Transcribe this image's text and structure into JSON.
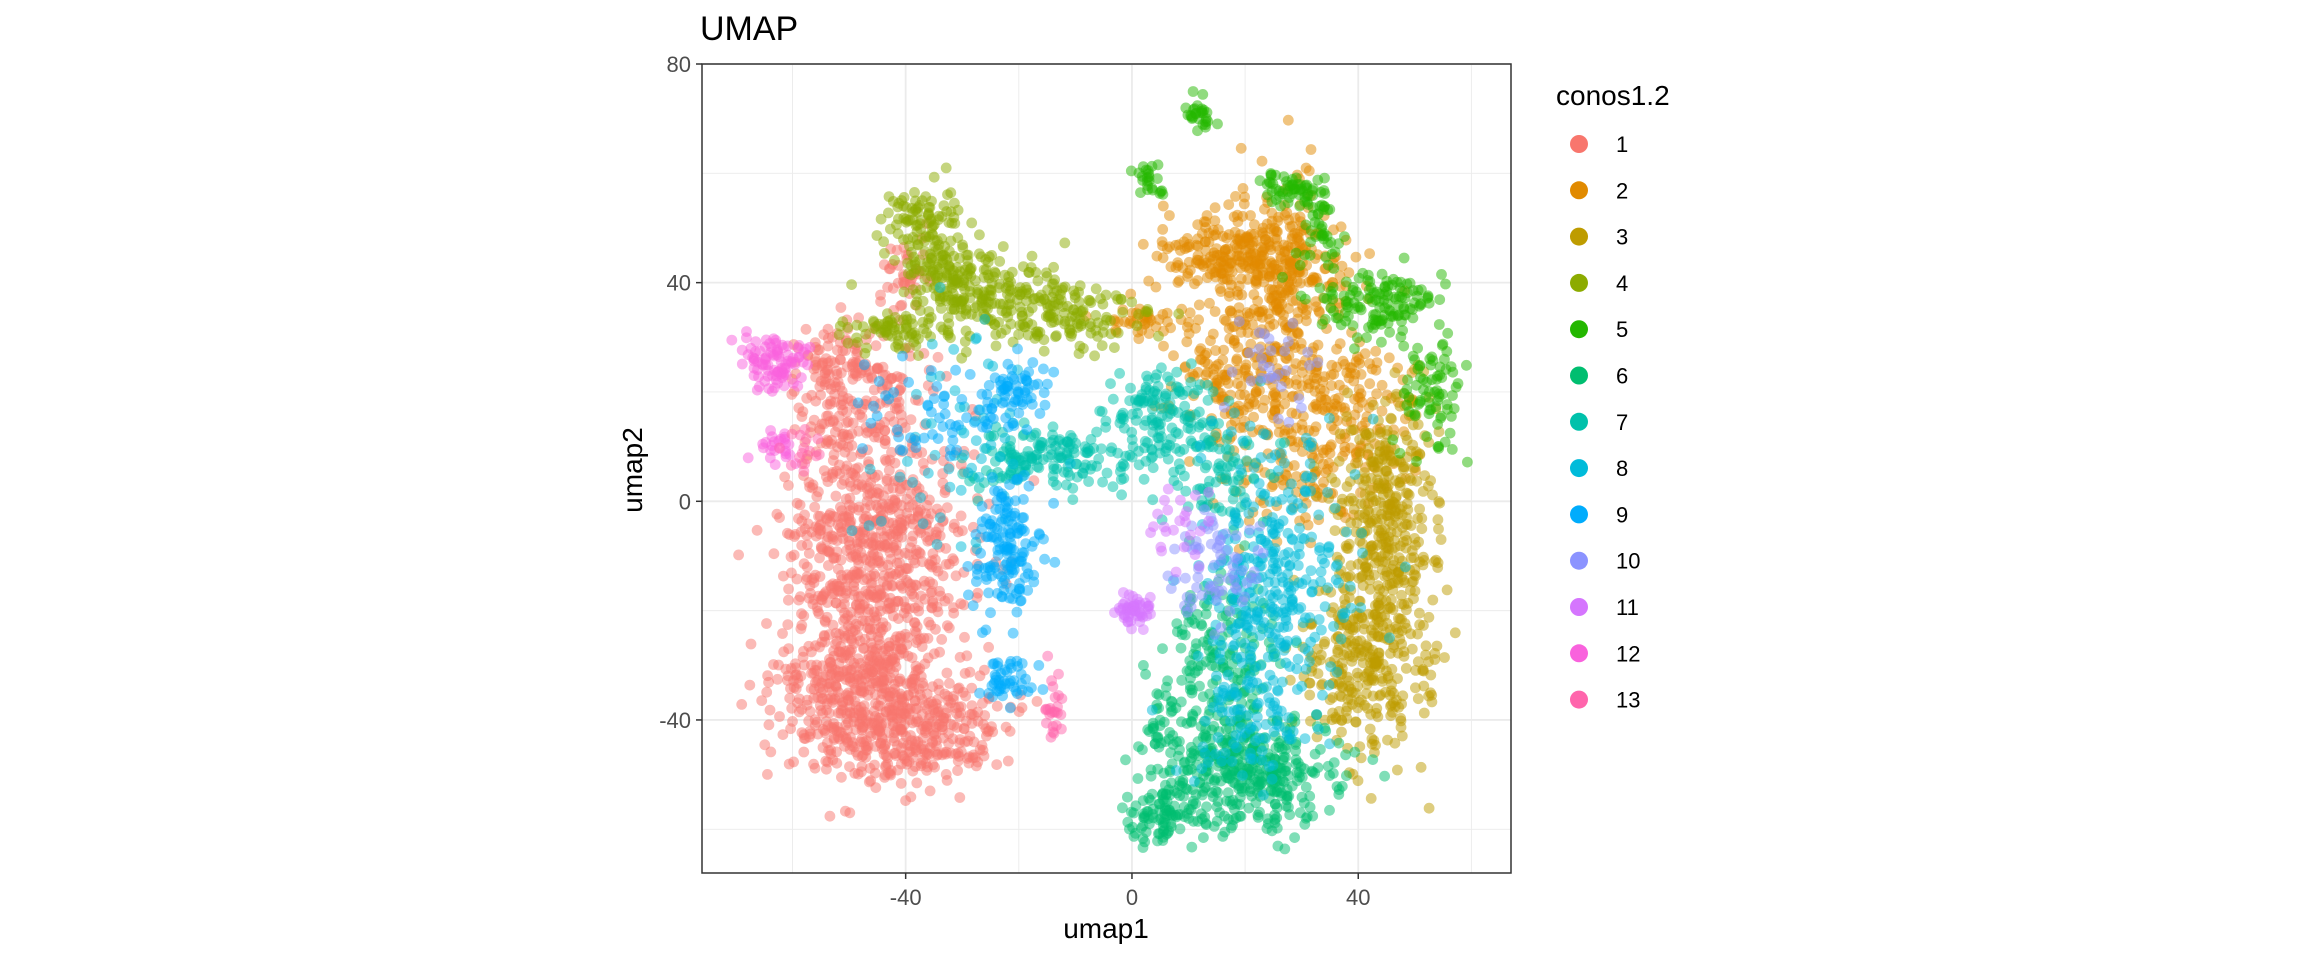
{
  "chart_data": {
    "type": "scatter",
    "title": "UMAP",
    "xlabel": "umap1",
    "ylabel": "umap2",
    "xlim": [
      -76,
      67
    ],
    "ylim": [
      -68,
      80
    ],
    "x_ticks": [
      -40,
      0,
      40
    ],
    "y_ticks": [
      -40,
      0,
      40,
      80
    ],
    "x_tick_labels": [
      "-40",
      "0",
      "40"
    ],
    "y_tick_labels": [
      "-40",
      "0",
      "40",
      "80"
    ],
    "grid": true,
    "point_alpha": 0.5,
    "legend": {
      "title": "conos1.2",
      "placement": "right"
    },
    "series": [
      {
        "name": "1",
        "color": "#F8766D",
        "clusters": [
          {
            "cx": -45,
            "cy": -8,
            "sx": 8,
            "sy": 12,
            "n": 700
          },
          {
            "cx": -48,
            "cy": -35,
            "sx": 7,
            "sy": 8,
            "n": 500
          },
          {
            "cx": -35,
            "cy": -42,
            "sx": 6,
            "sy": 5,
            "n": 220
          },
          {
            "cx": -48,
            "cy": 20,
            "sx": 5,
            "sy": 6,
            "n": 150
          },
          {
            "cx": -40,
            "cy": 42,
            "sx": 2,
            "sy": 4,
            "n": 40
          },
          {
            "cx": -55,
            "cy": 25,
            "sx": 3,
            "sy": 3,
            "n": 40
          }
        ]
      },
      {
        "name": "2",
        "color": "#E18A00",
        "clusters": [
          {
            "cx": 18,
            "cy": 45,
            "sx": 7,
            "sy": 4,
            "n": 220
          },
          {
            "cx": 27,
            "cy": 40,
            "sx": 5,
            "sy": 10,
            "n": 280
          },
          {
            "cx": 18,
            "cy": 22,
            "sx": 6,
            "sy": 6,
            "n": 160
          },
          {
            "cx": 38,
            "cy": 18,
            "sx": 6,
            "sy": 8,
            "n": 160
          },
          {
            "cx": 30,
            "cy": 5,
            "sx": 6,
            "sy": 6,
            "n": 90
          },
          {
            "cx": 2,
            "cy": 33,
            "sx": 3,
            "sy": 1.5,
            "n": 40
          }
        ]
      },
      {
        "name": "3",
        "color": "#BE9C00",
        "clusters": [
          {
            "cx": 44,
            "cy": -15,
            "sx": 5,
            "sy": 14,
            "n": 380
          },
          {
            "cx": 40,
            "cy": -32,
            "sx": 5,
            "sy": 6,
            "n": 160
          },
          {
            "cx": 45,
            "cy": 5,
            "sx": 4,
            "sy": 8,
            "n": 120
          }
        ]
      },
      {
        "name": "4",
        "color": "#8CAB00",
        "clusters": [
          {
            "cx": -35,
            "cy": 44,
            "sx": 4,
            "sy": 6,
            "n": 140
          },
          {
            "cx": -25,
            "cy": 38,
            "sx": 6,
            "sy": 4,
            "n": 160
          },
          {
            "cx": -12,
            "cy": 34,
            "sx": 6,
            "sy": 3,
            "n": 130
          },
          {
            "cx": -42,
            "cy": 31,
            "sx": 5,
            "sy": 2,
            "n": 70
          },
          {
            "cx": -38,
            "cy": 53,
            "sx": 3,
            "sy": 2,
            "n": 40
          }
        ]
      },
      {
        "name": "5",
        "color": "#24B700",
        "clusters": [
          {
            "cx": 12,
            "cy": 71,
            "sx": 1.2,
            "sy": 1.5,
            "n": 28
          },
          {
            "cx": 3,
            "cy": 59,
            "sx": 1.2,
            "sy": 1.5,
            "n": 24
          },
          {
            "cx": 28,
            "cy": 57,
            "sx": 3,
            "sy": 1.5,
            "n": 50
          },
          {
            "cx": 33,
            "cy": 50,
            "sx": 2,
            "sy": 4,
            "n": 45
          },
          {
            "cx": 43,
            "cy": 36,
            "sx": 6,
            "sy": 3,
            "n": 130
          },
          {
            "cx": 53,
            "cy": 20,
            "sx": 3,
            "sy": 6,
            "n": 80
          }
        ]
      },
      {
        "name": "6",
        "color": "#00BE70",
        "clusters": [
          {
            "cx": 20,
            "cy": -50,
            "sx": 8,
            "sy": 5,
            "n": 360
          },
          {
            "cx": 5,
            "cy": -58,
            "sx": 3,
            "sy": 2.5,
            "n": 80
          },
          {
            "cx": 16,
            "cy": -30,
            "sx": 5,
            "sy": 10,
            "n": 200
          },
          {
            "cx": 5,
            "cy": -40,
            "sx": 2,
            "sy": 5,
            "n": 40
          }
        ]
      },
      {
        "name": "7",
        "color": "#00C1AB",
        "clusters": [
          {
            "cx": -15,
            "cy": 8,
            "sx": 7,
            "sy": 3,
            "n": 160
          },
          {
            "cx": 5,
            "cy": 15,
            "sx": 5,
            "sy": 5,
            "n": 150
          },
          {
            "cx": 15,
            "cy": 5,
            "sx": 4,
            "sy": 5,
            "n": 80
          }
        ]
      },
      {
        "name": "8",
        "color": "#00BBDA",
        "clusters": [
          {
            "cx": 25,
            "cy": -15,
            "sx": 7,
            "sy": 12,
            "n": 320
          },
          {
            "cx": 20,
            "cy": -40,
            "sx": 5,
            "sy": 5,
            "n": 80
          },
          {
            "cx": -30,
            "cy": 10,
            "sx": 8,
            "sy": 10,
            "n": 60
          }
        ]
      },
      {
        "name": "9",
        "color": "#00ACFC",
        "clusters": [
          {
            "cx": -22,
            "cy": -8,
            "sx": 3,
            "sy": 6,
            "n": 150
          },
          {
            "cx": -22,
            "cy": -33,
            "sx": 2,
            "sy": 2,
            "n": 45
          },
          {
            "cx": -20,
            "cy": 20,
            "sx": 3,
            "sy": 3,
            "n": 60
          },
          {
            "cx": -35,
            "cy": 15,
            "sx": 6,
            "sy": 5,
            "n": 60
          }
        ]
      },
      {
        "name": "10",
        "color": "#8B93FF",
        "clusters": [
          {
            "cx": 15,
            "cy": -12,
            "sx": 4,
            "sy": 5,
            "n": 70
          },
          {
            "cx": 25,
            "cy": 25,
            "sx": 4,
            "sy": 4,
            "n": 30
          }
        ]
      },
      {
        "name": "11",
        "color": "#D575FE",
        "clusters": [
          {
            "cx": 0,
            "cy": -20,
            "sx": 1.5,
            "sy": 1.5,
            "n": 50
          },
          {
            "cx": 8,
            "cy": -5,
            "sx": 3,
            "sy": 4,
            "n": 25
          }
        ]
      },
      {
        "name": "12",
        "color": "#F962DD",
        "clusters": [
          {
            "cx": -63,
            "cy": 25,
            "sx": 3,
            "sy": 2.5,
            "n": 90
          },
          {
            "cx": -63,
            "cy": 10,
            "sx": 2,
            "sy": 1.5,
            "n": 25
          }
        ]
      },
      {
        "name": "13",
        "color": "#FF65AC",
        "clusters": [
          {
            "cx": -14,
            "cy": -38,
            "sx": 1,
            "sy": 3,
            "n": 25
          },
          {
            "cx": -58,
            "cy": 10,
            "sx": 2,
            "sy": 2,
            "n": 15
          }
        ]
      }
    ]
  }
}
